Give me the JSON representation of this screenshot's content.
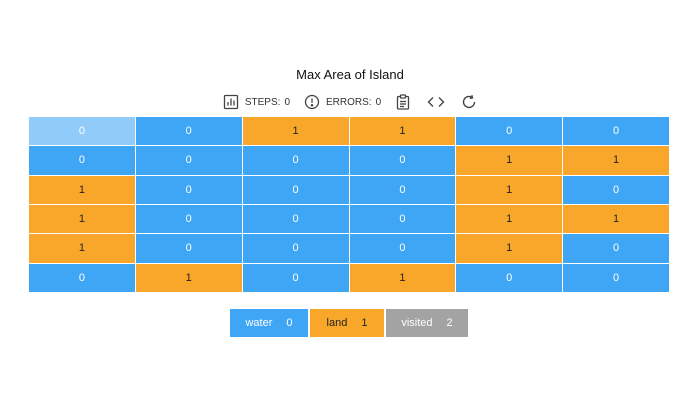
{
  "title": "Max Area of Island",
  "toolbar": {
    "steps_label": "STEPS:",
    "steps_value": "0",
    "errors_label": "ERRORS:",
    "errors_value": "0",
    "icons": [
      "bar-chart-icon",
      "alert-circle-icon",
      "clipboard-icon",
      "code-icon",
      "refresh-icon"
    ]
  },
  "grid": {
    "current_cell": [
      0,
      0
    ],
    "rows": [
      [
        "0",
        "0",
        "1",
        "1",
        "0",
        "0"
      ],
      [
        "0",
        "0",
        "0",
        "0",
        "1",
        "1"
      ],
      [
        "1",
        "0",
        "0",
        "0",
        "1",
        "0"
      ],
      [
        "1",
        "0",
        "0",
        "0",
        "1",
        "1"
      ],
      [
        "1",
        "0",
        "0",
        "0",
        "1",
        "0"
      ],
      [
        "0",
        "1",
        "0",
        "1",
        "0",
        "0"
      ]
    ]
  },
  "legend": [
    {
      "label": "water",
      "value": "0"
    },
    {
      "label": "land",
      "value": "1"
    },
    {
      "label": "visited",
      "value": "2"
    }
  ],
  "colors": {
    "water": "#3fa5f5",
    "land": "#f9a72b",
    "visited": "#a3a3a3",
    "current": "#90cbf9"
  }
}
